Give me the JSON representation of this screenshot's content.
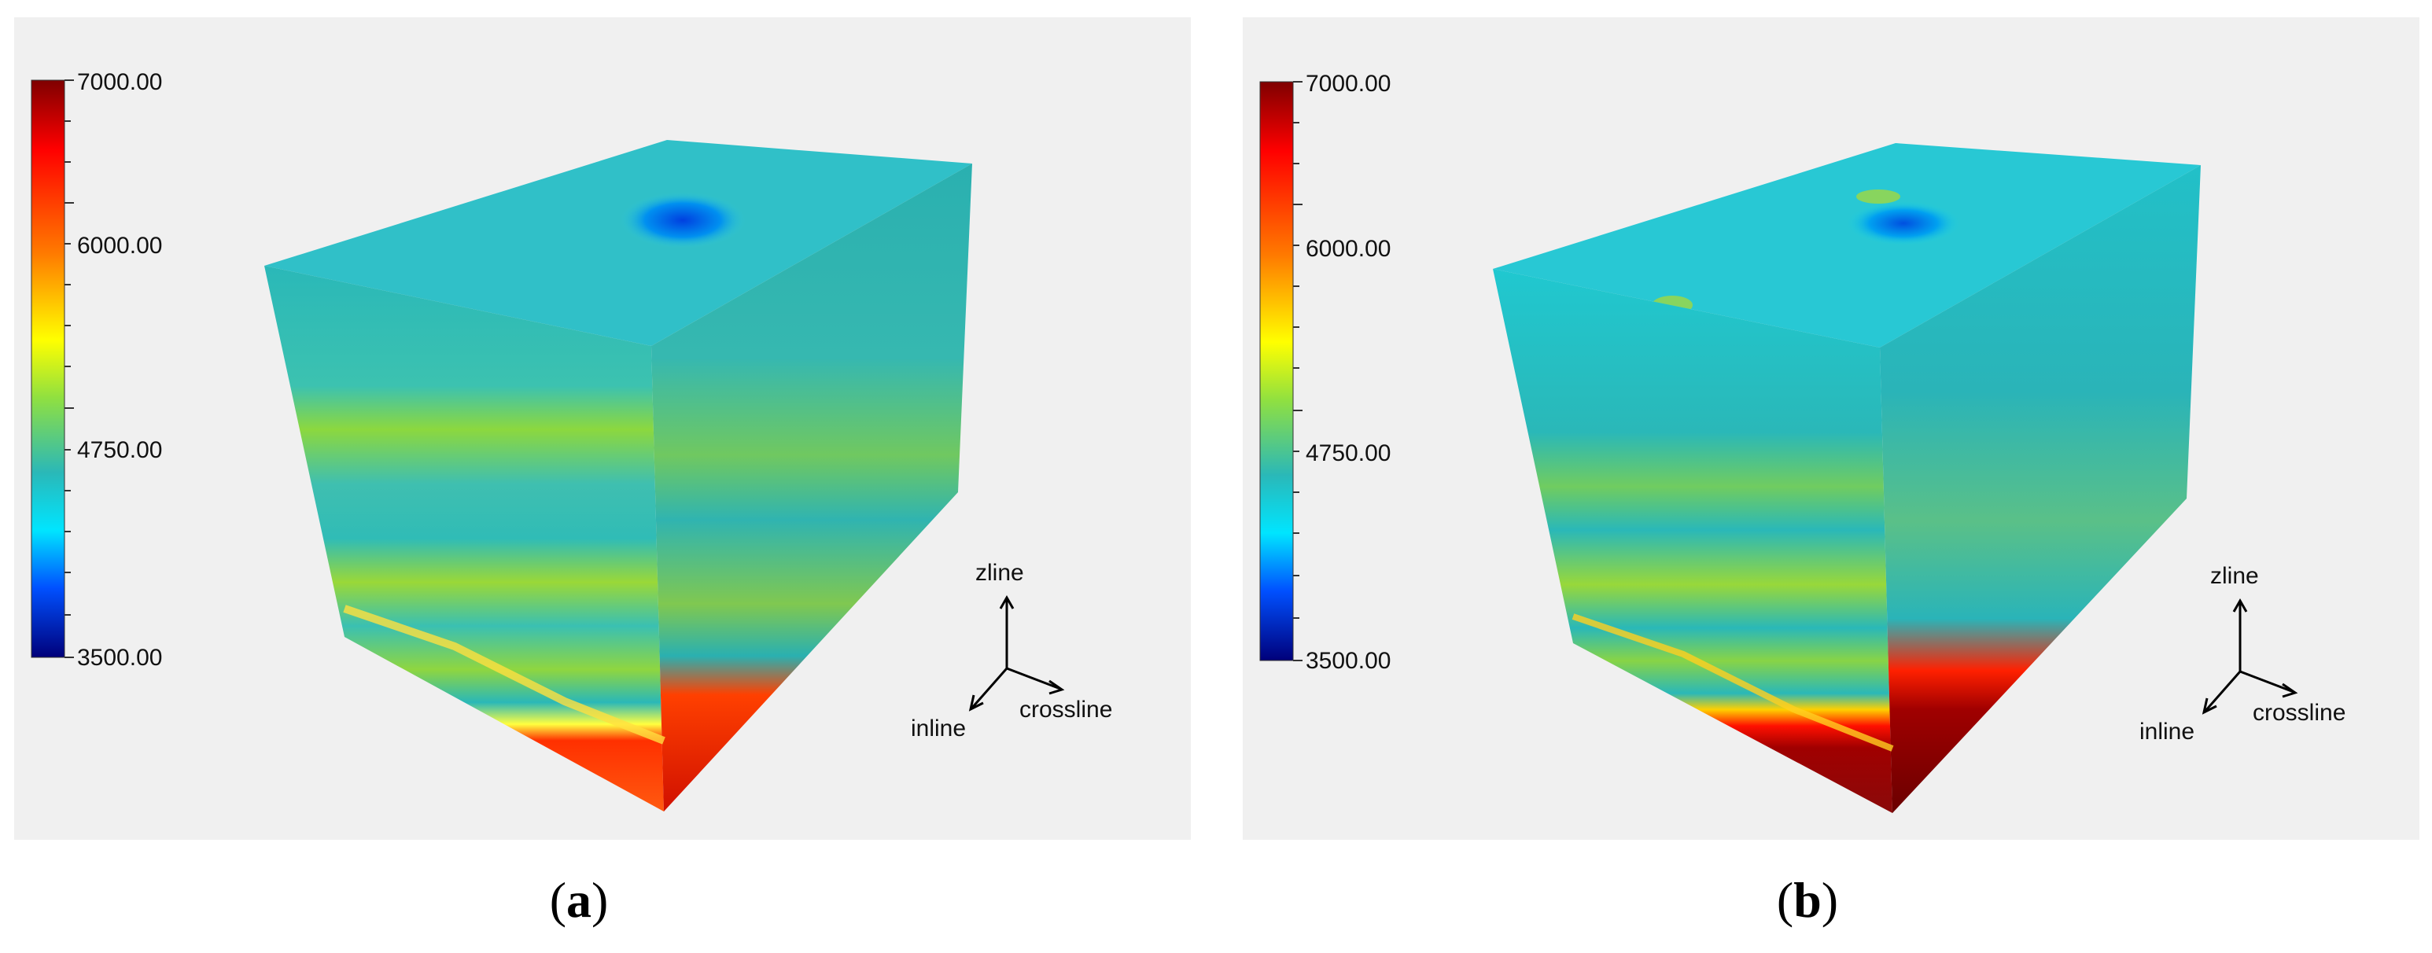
{
  "colorbar": {
    "max_label": "7000.00",
    "mid1_label": "6000.00",
    "mid2_label": "4750.00",
    "min_label": "3500.00",
    "colors": [
      "#7f0000",
      "#ff0000",
      "#ff7a00",
      "#ffff00",
      "#90e040",
      "#2ab8b8",
      "#00e5ff",
      "#0050ff",
      "#00007a"
    ]
  },
  "axes": {
    "z_label": "zline",
    "inline_label": "inline",
    "crossline_label": "crossline"
  },
  "captions": {
    "a_open": "(",
    "a_letter": "a",
    "a_close": ")",
    "b_open": "(",
    "b_letter": "b",
    "b_close": ")"
  }
}
